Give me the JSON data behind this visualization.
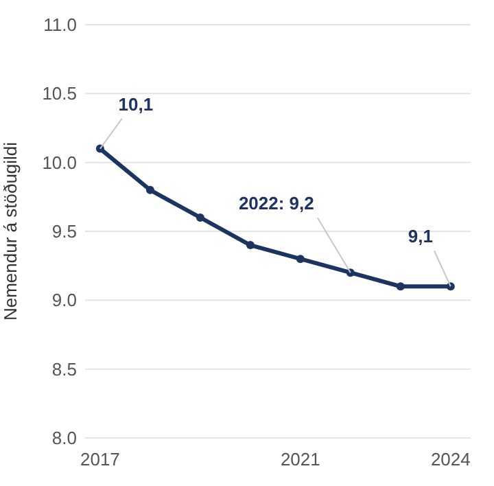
{
  "chart_data": {
    "type": "line",
    "ylabel": "Nemendur á stöðugildi",
    "x": [
      2017,
      2018,
      2019,
      2020,
      2021,
      2022,
      2023,
      2024
    ],
    "series": [
      {
        "color": "#1d3461",
        "values": [
          10.1,
          9.8,
          9.6,
          9.4,
          9.3,
          9.2,
          9.1,
          9.1
        ]
      }
    ],
    "xlim": [
      2016.7,
      2024.4
    ],
    "xticks": [
      2017,
      2021,
      2024
    ],
    "ylim": [
      8,
      11
    ],
    "yticks": [
      {
        "value": 8,
        "label": "8.0"
      },
      {
        "value": 8.5,
        "label": "8.5"
      },
      {
        "value": 9,
        "label": "9.0"
      },
      {
        "value": 9.5,
        "label": "9.5"
      },
      {
        "value": 10,
        "label": "10.0"
      },
      {
        "value": 10.5,
        "label": "10.5"
      },
      {
        "value": 11,
        "label": "11.0"
      }
    ],
    "grid": "y",
    "marker": "circle",
    "line_style": "solid",
    "annotations": [
      {
        "text": "10,1",
        "x": 2017,
        "y": 10.1
      },
      {
        "text": "2022: 9,2",
        "x": 2022,
        "y": 9.2
      },
      {
        "text": "9,1",
        "x": 2024,
        "y": 9.1
      }
    ]
  }
}
